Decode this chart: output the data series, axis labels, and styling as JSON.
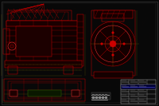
{
  "bg_color": "#080808",
  "line_color_main": "#cc0000",
  "line_color_bright": "#ff3333",
  "line_color_yellow": "#bbaa00",
  "line_color_white": "#cccccc",
  "line_color_green": "#336600",
  "title_block_color": "#aaaaaa",
  "fig_width": 2.0,
  "fig_height": 1.33,
  "dpi": 100
}
